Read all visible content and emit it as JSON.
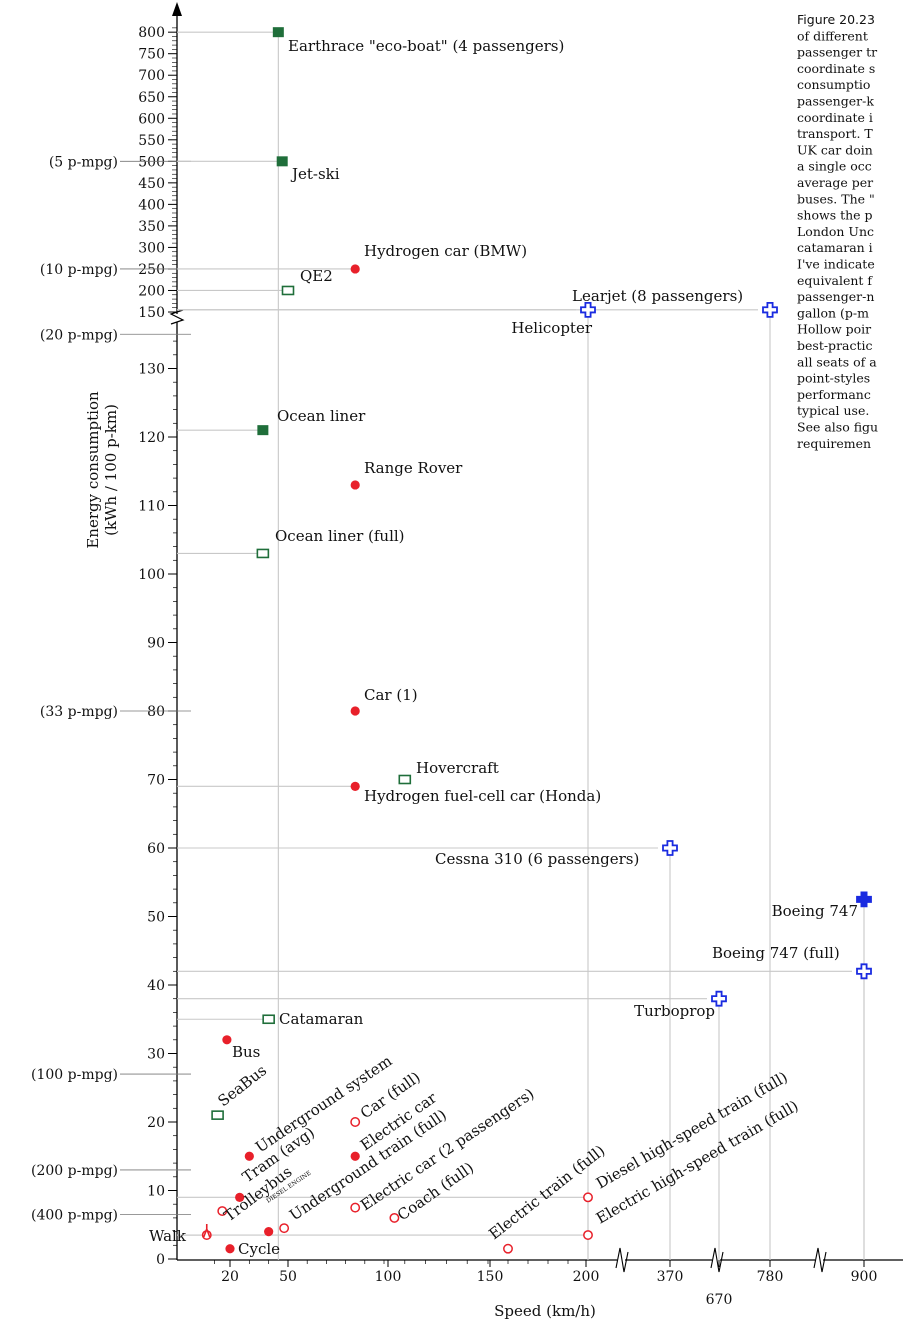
{
  "chart_data": {
    "type": "scatter",
    "title": "",
    "xlabel": "Speed (km/h)",
    "ylabel": "Energy consumption (kWh / 100 p-km)",
    "x_ticks": [
      "20",
      "50",
      "100",
      "150",
      "200",
      "370",
      "670",
      "780",
      "900"
    ],
    "y_ticks_lower": [
      "0",
      "10",
      "20",
      "30",
      "40",
      "50",
      "60",
      "70",
      "80",
      "90",
      "100",
      "110",
      "120",
      "130"
    ],
    "y_ticks_upper": [
      "150",
      "200",
      "250",
      "300",
      "350",
      "400",
      "450",
      "500",
      "550",
      "600",
      "650",
      "700",
      "750",
      "800"
    ],
    "mpg_labels": [
      {
        "text": "(5 p-mpg)",
        "y": 500
      },
      {
        "text": "(10 p-mpg)",
        "y": 250
      },
      {
        "text": "(20 p-mpg)",
        "y": 135
      },
      {
        "text": "(33 p-mpg)",
        "y": 80
      },
      {
        "text": "(100 p-mpg)",
        "y": 27
      },
      {
        "text": "(200 p-mpg)",
        "y": 13
      },
      {
        "text": "(400 p-mpg)",
        "y": 6.5
      }
    ],
    "colors": {
      "car": "#e8202a",
      "boat": "#1f6e3a",
      "plane": "#1a2be0",
      "guide": "#c8c8c8"
    },
    "series": [
      {
        "name": "Earthrace \"eco-boat\" (4 passengers)",
        "x": 45,
        "y": 800,
        "marker": "square-filled",
        "color": "boat"
      },
      {
        "name": "Jet-ski",
        "x": 47,
        "y": 500,
        "marker": "square-filled",
        "color": "boat"
      },
      {
        "name": "Hydrogen car (BMW)",
        "x": 85,
        "y": 250,
        "marker": "circle-filled",
        "color": "car"
      },
      {
        "name": "QE2",
        "x": 50,
        "y": 200,
        "marker": "square-open",
        "color": "boat"
      },
      {
        "name": "Learjet (8 passengers)",
        "x": 780,
        "y": 155,
        "marker": "cross-open",
        "color": "plane"
      },
      {
        "name": "Helicopter",
        "x": 200,
        "y": 155,
        "marker": "cross-open",
        "color": "plane"
      },
      {
        "name": "Ocean liner",
        "x": 37,
        "y": 121,
        "marker": "square-filled",
        "color": "boat"
      },
      {
        "name": "Range Rover",
        "x": 85,
        "y": 113,
        "marker": "circle-filled",
        "color": "car"
      },
      {
        "name": "Ocean liner (full)",
        "x": 37,
        "y": 103,
        "marker": "square-open",
        "color": "boat"
      },
      {
        "name": "Car (1)",
        "x": 85,
        "y": 80,
        "marker": "circle-filled",
        "color": "car"
      },
      {
        "name": "Hovercraft",
        "x": 110,
        "y": 70,
        "marker": "square-open",
        "color": "boat"
      },
      {
        "name": "Hydrogen fuel-cell car (Honda)",
        "x": 85,
        "y": 69,
        "marker": "circle-filled",
        "color": "car"
      },
      {
        "name": "Cessna 310 (6 passengers)",
        "x": 370,
        "y": 60,
        "marker": "cross-open",
        "color": "plane"
      },
      {
        "name": "Boeing 747",
        "x": 900,
        "y": 52.5,
        "marker": "cross-filled",
        "color": "plane"
      },
      {
        "name": "Boeing 747 (full)",
        "x": 900,
        "y": 42,
        "marker": "cross-open",
        "color": "plane"
      },
      {
        "name": "Turboprop",
        "x": 670,
        "y": 38,
        "marker": "cross-open",
        "color": "plane"
      },
      {
        "name": "Catamaran",
        "x": 40,
        "y": 35,
        "marker": "square-open",
        "color": "boat"
      },
      {
        "name": "Bus",
        "x": 18,
        "y": 32,
        "marker": "circle-filled",
        "color": "car"
      },
      {
        "name": "SeaBus",
        "x": 12,
        "y": 21,
        "marker": "square-open",
        "color": "boat"
      },
      {
        "name": "Car (full)",
        "x": 85,
        "y": 20,
        "marker": "circle-open",
        "color": "car"
      },
      {
        "name": "Underground system",
        "x": 30,
        "y": 15,
        "marker": "circle-filled",
        "color": "car"
      },
      {
        "name": "Electric car",
        "x": 85,
        "y": 15,
        "marker": "circle-filled",
        "color": "car"
      },
      {
        "name": "Tram (avg)",
        "x": 25,
        "y": 9,
        "marker": "circle-filled",
        "color": "car"
      },
      {
        "name": "Underground train (full)",
        "x": 85,
        "y": 7.5,
        "marker": "circle-open",
        "color": "car"
      },
      {
        "name": "Electric car (2 passengers)",
        "x": 105,
        "y": 6,
        "marker": "circle-open",
        "color": "car"
      },
      {
        "name": "Trolleybus",
        "x": 15,
        "y": 7,
        "marker": "circle-open",
        "color": "car"
      },
      {
        "name": "Coach (full)",
        "x": 48,
        "y": 4.5,
        "marker": "circle-open",
        "color": "car"
      },
      {
        "name": "Electric train (full)",
        "x": 160,
        "y": 1.5,
        "marker": "circle-open",
        "color": "car"
      },
      {
        "name": "Diesel high-speed train (full)",
        "x": 200,
        "y": 9,
        "marker": "circle-open",
        "color": "car"
      },
      {
        "name": "Electric high-speed train (full)",
        "x": 200,
        "y": 3.5,
        "marker": "circle-open",
        "color": "car"
      },
      {
        "name": "Walk",
        "x": 5,
        "y": 3.5,
        "marker": "circle-open",
        "color": "car"
      },
      {
        "name": "Cycle",
        "x": 20,
        "y": 1.5,
        "marker": "circle-filled",
        "color": "car"
      },
      {
        "name": "",
        "x": 40,
        "y": 4,
        "marker": "circle-filled",
        "color": "car"
      }
    ],
    "small_label": "DIESEL ENGINE"
  },
  "caption": {
    "lines": [
      "Figure 20.23",
      "of different",
      "passenger tr",
      "coordinate s",
      "consumptio",
      "passenger-k",
      "coordinate i",
      "transport. T",
      "UK car doin",
      "a single occ",
      "average per",
      "buses. The \"",
      "shows the p",
      "London Unc",
      "catamaran i",
      "I've indicate",
      "equivalent f",
      "passenger-n",
      "gallon (p-m",
      "Hollow poir",
      "best-practic",
      "all seats of a",
      "point-styles",
      "performanc",
      "typical use.",
      "See also figu",
      "requiremen"
    ]
  }
}
